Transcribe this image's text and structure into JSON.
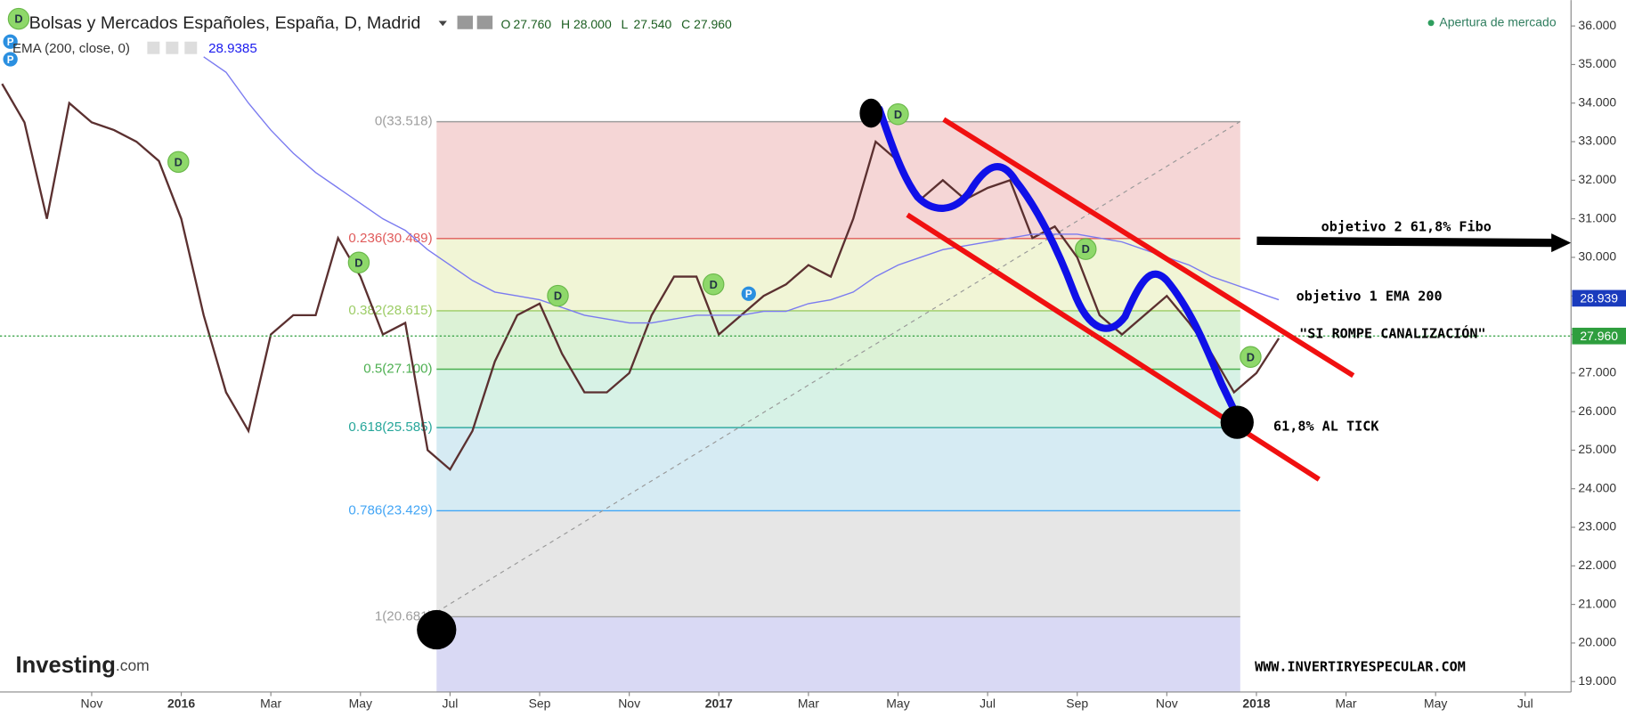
{
  "chart_data": {
    "type": "line",
    "title": "Bolsas y Mercados Españoles, España, D, Madrid",
    "ohlc": [
      {
        "key": "O",
        "text": "27.760"
      },
      {
        "key": "H",
        "text": "28.000"
      },
      {
        "key": "L",
        "text": "27.540"
      },
      {
        "key": "C",
        "text": "27.960"
      }
    ],
    "ema_value_text": "28.9385",
    "status": "Apertura de mercado",
    "categories": [
      null,
      null,
      null,
      null,
      "Nov",
      null,
      null,
      null,
      "2016",
      null,
      null,
      null,
      "Mar",
      null,
      null,
      null,
      "May",
      null,
      null,
      null,
      "Jul",
      null,
      null,
      null,
      "Sep",
      null,
      null,
      null,
      "Nov",
      null,
      null,
      null,
      "2017",
      null,
      null,
      null,
      "Mar",
      null,
      null,
      null,
      "May",
      null,
      null,
      null,
      "Jul",
      null,
      null,
      null,
      "Sep",
      null,
      null,
      null,
      "Nov",
      null,
      null,
      null,
      "2018",
      null,
      null,
      null,
      "Mar",
      null,
      null,
      null,
      "May",
      null,
      null,
      null,
      "Jul"
    ],
    "series": [
      {
        "color": "#5b3030",
        "values": [
          34.5,
          33.5,
          31.0,
          34.0,
          33.5,
          33.3,
          33.0,
          32.5,
          31.0,
          28.5,
          26.5,
          25.5,
          28.0,
          28.5,
          28.5,
          30.5,
          29.5,
          28.0,
          28.3,
          25.0,
          24.5,
          25.5,
          27.3,
          28.5,
          28.8,
          27.5,
          26.5,
          26.5,
          27.0,
          28.5,
          29.5,
          29.5,
          28.0,
          28.5,
          29.0,
          29.3,
          29.8,
          29.5,
          31.0,
          33.0,
          32.5,
          31.5,
          32.0,
          31.5,
          31.8,
          32.0,
          30.5,
          30.8,
          30.0,
          28.5,
          28.0,
          28.5,
          29.0,
          28.3,
          27.5,
          26.5,
          27.0,
          27.9,
          null,
          null,
          null,
          null,
          null,
          null,
          null,
          null,
          null,
          null,
          null
        ]
      },
      {
        "name": "EMA (200, close, 0)",
        "color": "#7b7bf0",
        "values": [
          null,
          null,
          null,
          null,
          null,
          null,
          null,
          null,
          null,
          35.2,
          34.8,
          34.0,
          33.3,
          32.7,
          32.2,
          31.8,
          31.4,
          31.0,
          30.7,
          30.2,
          29.8,
          29.4,
          29.1,
          29.0,
          28.9,
          28.7,
          28.5,
          28.4,
          28.3,
          28.3,
          28.4,
          28.5,
          28.5,
          28.5,
          28.6,
          28.6,
          28.8,
          28.9,
          29.1,
          29.5,
          29.8,
          30.0,
          30.2,
          30.3,
          30.4,
          30.5,
          30.6,
          30.6,
          30.6,
          30.5,
          30.4,
          30.2,
          30.0,
          29.8,
          29.5,
          29.3,
          29.1,
          28.9,
          null,
          null,
          null,
          null,
          null,
          null,
          null,
          null,
          null,
          null,
          null
        ]
      }
    ],
    "price_tags": [
      {
        "value": 28.939,
        "label": "28.939",
        "color": "#1a3bbd"
      },
      {
        "value": 27.96,
        "label": "27.960",
        "color": "#2e9e3e"
      }
    ],
    "fibonacci": [
      {
        "value": 33.518,
        "label": "0(33.518)",
        "color": "#9e9e9e",
        "fill": "#f3cfcf"
      },
      {
        "value": 30.489,
        "label": "0.236(30.489)",
        "color": "#e05a5a",
        "fill": "#eef3cf"
      },
      {
        "value": 28.615,
        "label": "0.382(28.615)",
        "color": "#9ccc65",
        "fill": "#d6f0cf"
      },
      {
        "value": 27.1,
        "label": "0.5(27.100)",
        "color": "#4caf50",
        "fill": "#d0f0e2"
      },
      {
        "value": 25.585,
        "label": "0.618(25.585)",
        "color": "#26a69a",
        "fill": "#cfe7f1"
      },
      {
        "value": 23.429,
        "label": "0.786(23.429)",
        "color": "#42a5f5",
        "fill": "#e2e2e2"
      },
      {
        "value": 20.681,
        "label": "1(20.681)",
        "color": "#9e9e9e",
        "fill": "#d2d2f2"
      }
    ],
    "ylim": [
      18.73,
      36.67
    ],
    "yticks": [
      {
        "value": 19,
        "label": "19.000"
      },
      {
        "value": 20,
        "label": "20.000"
      },
      {
        "value": 21,
        "label": "21.000"
      },
      {
        "value": 22,
        "label": "22.000"
      },
      {
        "value": 23,
        "label": "23.000"
      },
      {
        "value": 24,
        "label": "24.000"
      },
      {
        "value": 25,
        "label": "25.000"
      },
      {
        "value": 26,
        "label": "26.000"
      },
      {
        "value": 27,
        "label": "27.000"
      },
      {
        "value": 28,
        "label": "28.000"
      },
      {
        "value": 29,
        "label": "29.000"
      },
      {
        "value": 30,
        "label": "30.000"
      },
      {
        "value": 31,
        "label": "31.000"
      },
      {
        "value": 32,
        "label": "32.000"
      },
      {
        "value": 33,
        "label": "33.000"
      },
      {
        "value": 34,
        "label": "34.000"
      },
      {
        "value": 35,
        "label": "35.000"
      },
      {
        "value": 36,
        "label": "36.000"
      }
    ],
    "grid": false,
    "markers": {
      "dividend": "D",
      "pivot": "P"
    },
    "annotations": {
      "target2": "objetivo 2 61,8%  Fibo",
      "target1": "objetivo 1 EMA 200",
      "breakout": "\"SI ROMPE CANALIZACIÓN\"",
      "tick": "61,8% AL TICK",
      "website": "WWW.INVERTIRYESPECULAR.COM"
    },
    "logo": {
      "name": "Investing",
      "suffix": ".com"
    }
  }
}
